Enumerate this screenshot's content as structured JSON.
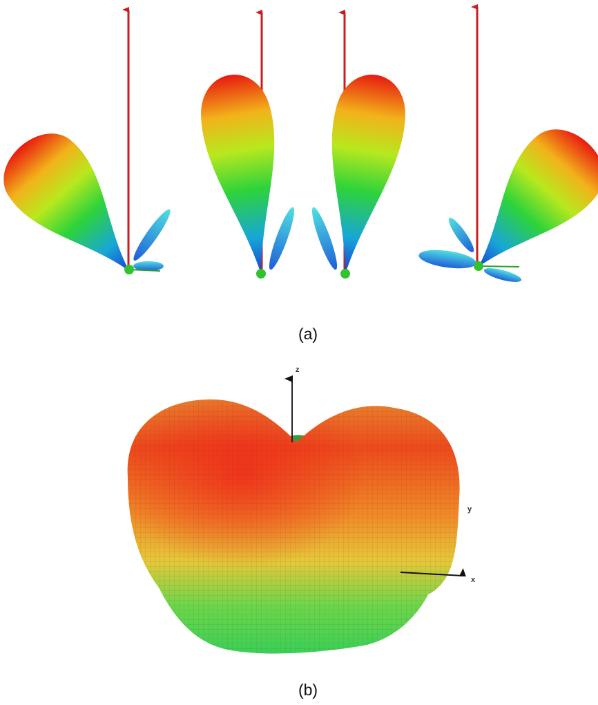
{
  "panels": [
    {
      "label": "(a)"
    },
    {
      "label": "(b)",
      "axes": {
        "z": "z",
        "y": "y",
        "x": "x"
      }
    }
  ]
}
